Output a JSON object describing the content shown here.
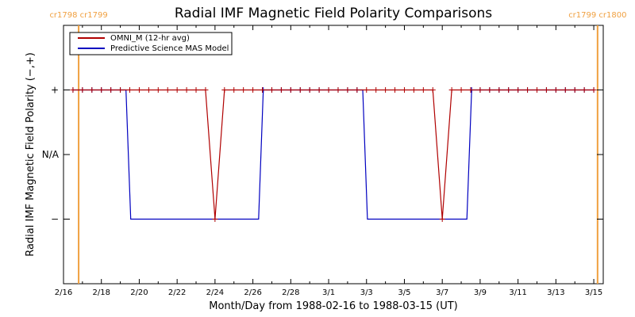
{
  "chart_data": {
    "type": "line",
    "title": "Radial IMF Magnetic Field Polarity Comparisons",
    "xlabel": "Month/Day from 1988-02-16 to 1988-03-15 (UT)",
    "ylabel": "Radial IMF Magnetic Field Polarity (−,+)",
    "xlim": [
      0,
      28.5
    ],
    "ylim": [
      -2,
      2
    ],
    "x_unit": "days since 1988-02-16 00:00 UT",
    "xticks": [
      {
        "x": 0,
        "label": "2/16"
      },
      {
        "x": 2,
        "label": "2/18"
      },
      {
        "x": 4,
        "label": "2/20"
      },
      {
        "x": 6,
        "label": "2/22"
      },
      {
        "x": 8,
        "label": "2/24"
      },
      {
        "x": 10,
        "label": "2/26"
      },
      {
        "x": 12,
        "label": "2/28"
      },
      {
        "x": 14,
        "label": "3/1"
      },
      {
        "x": 16,
        "label": "3/3"
      },
      {
        "x": 18,
        "label": "3/5"
      },
      {
        "x": 20,
        "label": "3/7"
      },
      {
        "x": 22,
        "label": "3/9"
      },
      {
        "x": 24,
        "label": "3/11"
      },
      {
        "x": 26,
        "label": "3/13"
      },
      {
        "x": 28,
        "label": "3/15"
      }
    ],
    "yticks": [
      {
        "y": 1,
        "label": "+"
      },
      {
        "y": 0,
        "label": "N/A"
      },
      {
        "y": -1,
        "label": "−"
      }
    ],
    "vlines": [
      {
        "x": 0.8,
        "labels": [
          "cr1798",
          "cr1799"
        ],
        "color": "#f0a040"
      },
      {
        "x": 28.2,
        "labels": [
          "cr1799",
          "cr1800"
        ],
        "color": "#f0a040"
      }
    ],
    "series": [
      {
        "name": "OMNI_M (12-hr avg)",
        "color": "#b00000",
        "marker": "+",
        "x": [
          0.5,
          1.0,
          1.5,
          2.0,
          2.5,
          3.0,
          3.5,
          4.0,
          4.5,
          5.0,
          5.5,
          6.0,
          6.5,
          7.0,
          7.5,
          8.0,
          8.5,
          9.0,
          9.5,
          10.0,
          10.5,
          11.0,
          11.5,
          12.0,
          12.5,
          13.0,
          13.5,
          14.0,
          14.5,
          15.0,
          15.5,
          16.0,
          16.5,
          17.0,
          17.5,
          18.0,
          18.5,
          19.0,
          19.5,
          20.0,
          20.5,
          21.0,
          21.5,
          22.0,
          22.5,
          23.0,
          23.5,
          24.0,
          24.5,
          25.0,
          25.5,
          26.0,
          26.5,
          27.0,
          27.5,
          28.0
        ],
        "y": [
          1,
          1,
          1,
          1,
          1,
          1,
          1,
          1,
          1,
          1,
          1,
          1,
          1,
          1,
          1,
          -1,
          1,
          1,
          1,
          1,
          1,
          1,
          1,
          1,
          1,
          1,
          1,
          1,
          1,
          1,
          1,
          1,
          1,
          1,
          1,
          1,
          1,
          1,
          1,
          -1,
          1,
          1,
          1,
          1,
          1,
          1,
          1,
          1,
          1,
          1,
          1,
          1,
          1,
          1,
          1,
          1
        ]
      },
      {
        "name": "Predictive Science MAS Model",
        "color": "#0000c0",
        "marker": "+",
        "x": [
          0.5,
          1.0,
          1.5,
          2.0,
          2.5,
          3.0,
          3.3,
          3.55,
          10.3,
          10.55,
          11.0,
          11.5,
          12.0,
          12.5,
          13.0,
          13.5,
          14.0,
          14.5,
          15.0,
          15.5,
          15.8,
          16.05,
          21.3,
          21.55,
          22.0,
          22.5,
          23.0,
          23.5,
          24.0,
          24.5,
          25.0,
          25.5,
          26.0,
          26.5,
          27.0,
          27.5,
          28.0
        ],
        "y": [
          1,
          1,
          1,
          1,
          1,
          1,
          1,
          -1,
          -1,
          1,
          1,
          1,
          1,
          1,
          1,
          1,
          1,
          1,
          1,
          1,
          1,
          -1,
          -1,
          1,
          1,
          1,
          1,
          1,
          1,
          1,
          1,
          1,
          1,
          1,
          1,
          1,
          1
        ],
        "markers_at": [
          0.5,
          1.0,
          1.5,
          2.0,
          2.5,
          3.0,
          10.55,
          11.0,
          11.5,
          12.0,
          12.5,
          13.0,
          13.5,
          14.0,
          14.5,
          15.0,
          15.5,
          21.55,
          22.0,
          22.5,
          23.0,
          23.5,
          24.0,
          24.5,
          25.0,
          25.5,
          26.0,
          26.5,
          27.0,
          27.5,
          28.0
        ]
      }
    ],
    "legend": "top-left",
    "grid": false
  }
}
